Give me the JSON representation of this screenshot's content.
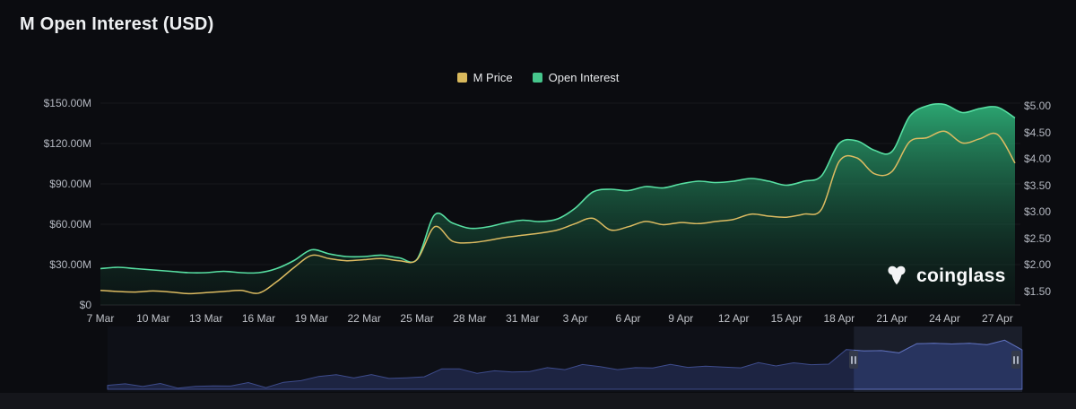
{
  "title": "M Open Interest (USD)",
  "legend": [
    {
      "label": "M Price",
      "color": "#d9b95c"
    },
    {
      "label": "Open Interest",
      "color": "#46c68c"
    }
  ],
  "watermark": {
    "text": "coinglass"
  },
  "navigator": {
    "selected_start": "18 Apr",
    "selected_end": "28 Apr",
    "range_frac": [
      0.816,
      1.0
    ]
  },
  "chart_data": {
    "type": "area",
    "title": "M Open Interest (USD)",
    "legend_position": "top",
    "grid": "horizontal-faint",
    "x": [
      "7 Mar",
      "8 Mar",
      "9 Mar",
      "10 Mar",
      "11 Mar",
      "12 Mar",
      "13 Mar",
      "14 Mar",
      "15 Mar",
      "16 Mar",
      "17 Mar",
      "18 Mar",
      "19 Mar",
      "20 Mar",
      "21 Mar",
      "22 Mar",
      "23 Mar",
      "24 Mar",
      "25 Mar",
      "26 Mar",
      "27 Mar",
      "28 Mar",
      "29 Mar",
      "30 Mar",
      "31 Mar",
      "1 Apr",
      "2 Apr",
      "3 Apr",
      "4 Apr",
      "5 Apr",
      "6 Apr",
      "7 Apr",
      "8 Apr",
      "9 Apr",
      "10 Apr",
      "11 Apr",
      "12 Apr",
      "13 Apr",
      "14 Apr",
      "15 Apr",
      "16 Apr",
      "17 Apr",
      "18 Apr",
      "19 Apr",
      "20 Apr",
      "21 Apr",
      "22 Apr",
      "23 Apr",
      "24 Apr",
      "25 Apr",
      "26 Apr",
      "27 Apr",
      "28 Apr"
    ],
    "x_ticks": [
      "7 Mar",
      "10 Mar",
      "13 Mar",
      "16 Mar",
      "19 Mar",
      "22 Mar",
      "25 Mar",
      "28 Mar",
      "31 Mar",
      "3 Apr",
      "6 Apr",
      "9 Apr",
      "12 Apr",
      "15 Apr",
      "18 Apr",
      "21 Apr",
      "24 Apr",
      "27 Apr"
    ],
    "left_axis": {
      "min": 0,
      "max": 150,
      "unit": "USD millions",
      "values": [
        0,
        30,
        60,
        90,
        120,
        150
      ],
      "labels": [
        "$0",
        "$30.00M",
        "$60.00M",
        "$90.00M",
        "$120.00M",
        "$150.00M"
      ]
    },
    "right_axis": {
      "min": 1.5,
      "max": 5.0,
      "unit": "USD",
      "values": [
        1.5,
        2.0,
        2.5,
        3.0,
        3.5,
        4.0,
        4.5,
        5.0
      ],
      "labels": [
        "$1.50",
        "$2.00",
        "$2.50",
        "$3.00",
        "$3.50",
        "$4.00",
        "$4.50",
        "$5.00"
      ]
    },
    "series": [
      {
        "name": "Open Interest",
        "axis": "left",
        "color": "#57dfa2",
        "fill_top": "#2fb67c",
        "values": [
          27,
          28,
          27,
          26,
          25,
          24,
          24,
          25,
          24,
          24,
          27,
          33,
          41,
          38,
          36,
          36,
          37,
          35,
          34,
          67,
          61,
          57,
          58,
          61,
          63,
          62,
          64,
          72,
          84,
          86,
          85,
          88,
          87,
          90,
          92,
          91,
          92,
          94,
          92,
          89,
          92,
          96,
          120,
          122,
          115,
          114,
          140,
          148,
          149,
          143,
          146,
          147,
          139
        ]
      },
      {
        "name": "M Price",
        "axis": "right",
        "color": "#dcbb61",
        "values": [
          1.52,
          1.5,
          1.49,
          1.51,
          1.49,
          1.46,
          1.48,
          1.5,
          1.52,
          1.47,
          1.68,
          1.95,
          2.18,
          2.12,
          2.08,
          2.1,
          2.12,
          2.08,
          2.1,
          2.72,
          2.45,
          2.42,
          2.46,
          2.52,
          2.56,
          2.6,
          2.66,
          2.78,
          2.88,
          2.66,
          2.72,
          2.82,
          2.76,
          2.8,
          2.78,
          2.82,
          2.86,
          2.96,
          2.92,
          2.9,
          2.96,
          3.05,
          3.95,
          4.02,
          3.72,
          3.76,
          4.32,
          4.4,
          4.52,
          4.3,
          4.38,
          4.46,
          3.92
        ]
      }
    ]
  }
}
